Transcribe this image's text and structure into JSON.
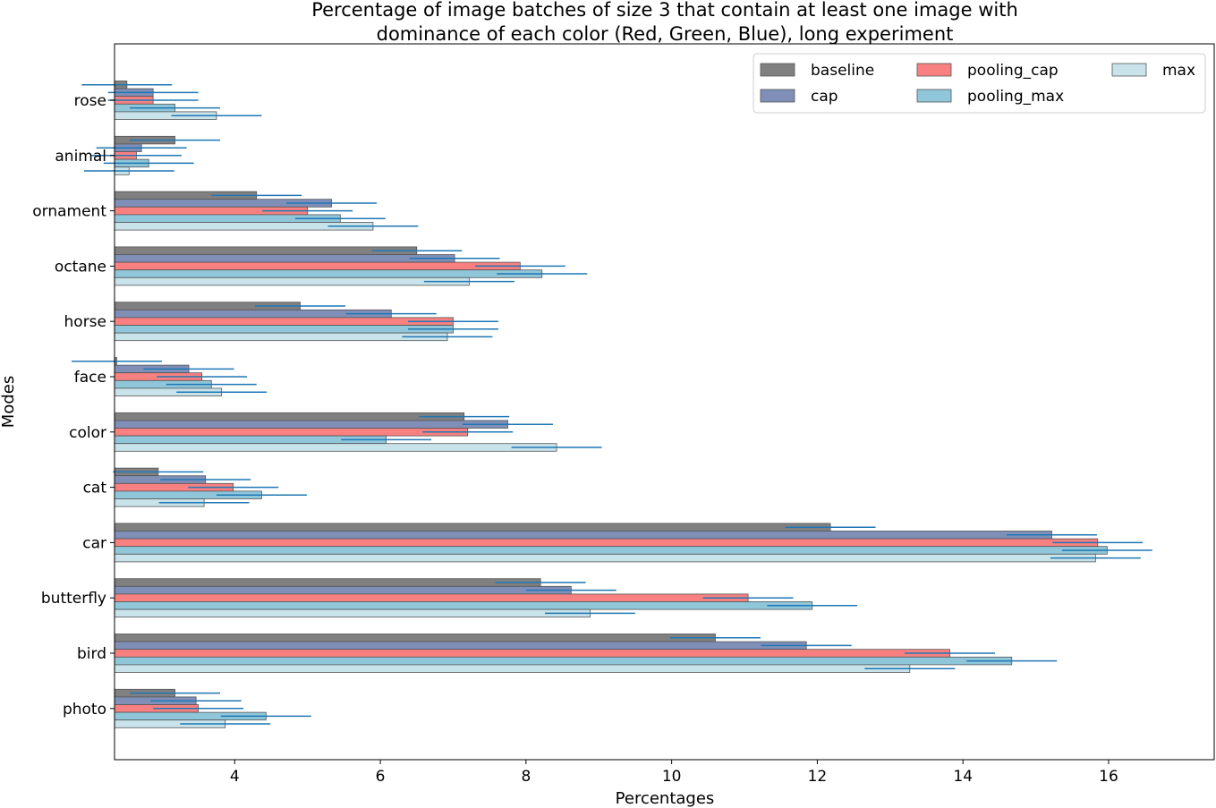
{
  "chart_data": {
    "type": "bar",
    "orientation": "horizontal",
    "title_line1": "Percentage of image batches of size 3 that contain at least one image with",
    "title_line2": "dominance of each color (Red, Green, Blue), long experiment",
    "xlabel": "Percentages",
    "ylabel": "Modes",
    "xlim": [
      2.35,
      17.45
    ],
    "xticks": [
      4,
      6,
      8,
      10,
      12,
      14,
      16
    ],
    "categories": [
      "rose",
      "animal",
      "ornament",
      "octane",
      "horse",
      "face",
      "color",
      "cat",
      "car",
      "butterfly",
      "bird",
      "photo"
    ],
    "series": [
      {
        "name": "baseline",
        "color": "#808080",
        "values": [
          2.52,
          3.18,
          4.3,
          6.5,
          4.9,
          2.38,
          7.15,
          2.95,
          12.18,
          8.2,
          10.6,
          3.18
        ],
        "errors": [
          0.62,
          0.62,
          0.62,
          0.62,
          0.62,
          0.62,
          0.62,
          0.62,
          0.62,
          0.62,
          0.62,
          0.62
        ]
      },
      {
        "name": "cap",
        "color": "#7f8fb8",
        "values": [
          2.88,
          2.72,
          5.33,
          7.02,
          6.15,
          3.37,
          7.75,
          3.6,
          15.22,
          8.62,
          11.85,
          3.47
        ],
        "errors": [
          0.62,
          0.62,
          0.62,
          0.62,
          0.62,
          0.62,
          0.62,
          0.62,
          0.62,
          0.62,
          0.62,
          0.62
        ]
      },
      {
        "name": "pooling_cap",
        "color": "#f88080",
        "values": [
          2.88,
          2.65,
          5.0,
          7.92,
          7.0,
          3.55,
          7.2,
          3.98,
          15.85,
          11.05,
          13.82,
          3.5
        ],
        "errors": [
          0.62,
          0.62,
          0.62,
          0.62,
          0.62,
          0.62,
          0.62,
          0.62,
          0.62,
          0.62,
          0.62,
          0.62
        ]
      },
      {
        "name": "pooling_max",
        "color": "#8fc6da",
        "values": [
          3.18,
          2.82,
          5.45,
          8.22,
          7.0,
          3.68,
          6.08,
          4.37,
          15.98,
          11.93,
          14.67,
          4.43
        ],
        "errors": [
          0.62,
          0.62,
          0.62,
          0.62,
          0.62,
          0.62,
          0.62,
          0.62,
          0.62,
          0.62,
          0.62,
          0.62
        ]
      },
      {
        "name": "max",
        "color": "#c8e3ea",
        "values": [
          3.75,
          2.55,
          5.9,
          7.22,
          6.92,
          3.82,
          8.42,
          3.58,
          15.82,
          8.88,
          13.27,
          3.87
        ],
        "errors": [
          0.62,
          0.62,
          0.62,
          0.62,
          0.62,
          0.62,
          0.62,
          0.62,
          0.62,
          0.62,
          0.62,
          0.62
        ]
      }
    ],
    "legend": {
      "location": "top-right",
      "columns": 3
    },
    "grid": false
  }
}
